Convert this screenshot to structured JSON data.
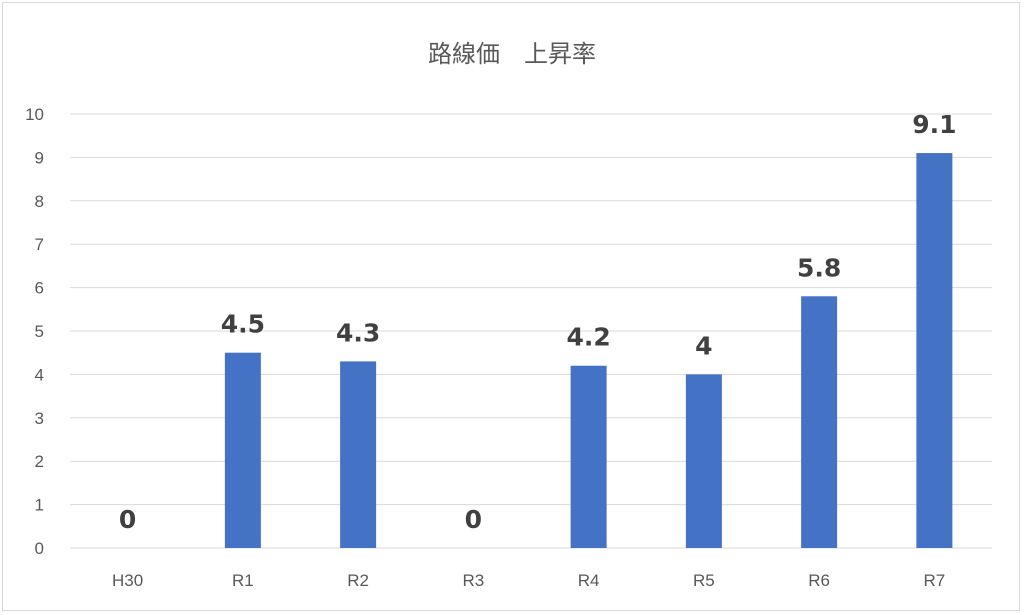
{
  "chart_data": {
    "type": "bar",
    "title": "路線価　上昇率",
    "categories": [
      "H30",
      "R1",
      "R2",
      "R3",
      "R4",
      "R5",
      "R6",
      "R7"
    ],
    "values": [
      0,
      4.5,
      4.3,
      0,
      4.2,
      4,
      5.8,
      9.1
    ],
    "data_labels": [
      "0",
      "4.5",
      "4.3",
      "0",
      "4.2",
      "4",
      "5.8",
      "9.1"
    ],
    "yticks": [
      "0",
      "1",
      "2",
      "3",
      "4",
      "5",
      "6",
      "7",
      "8",
      "9",
      "10"
    ],
    "ylim": [
      0,
      10
    ],
    "grid": true,
    "legend": "none",
    "colors": {
      "bar": "#4472C4",
      "grid": "#d9d9d9",
      "text": "#595959",
      "label": "#404040"
    }
  }
}
